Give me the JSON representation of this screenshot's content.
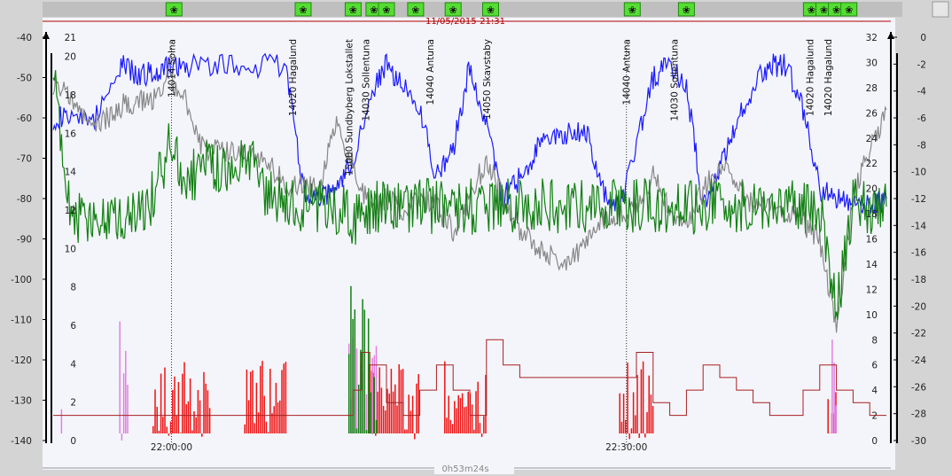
{
  "header": {
    "datetime": "11/05/2015-21:31"
  },
  "footer": {
    "duration": "0h53m24s"
  },
  "chart_data": {
    "type": "line",
    "time_ticks": [
      "22:00:00",
      "22:30:00"
    ],
    "left_axis_1": {
      "ylim": [
        -140,
        -40
      ],
      "ticks": [
        -40,
        -50,
        -60,
        -70,
        -80,
        -90,
        -100,
        -110,
        -120,
        -130,
        -140
      ]
    },
    "left_axis_2": {
      "ylim": [
        0,
        21
      ],
      "ticks": [
        21,
        20,
        18,
        16,
        14,
        12,
        10,
        8,
        6,
        4,
        2,
        0
      ]
    },
    "right_axis_1": {
      "ylim": [
        0,
        32
      ],
      "ticks": [
        32,
        30,
        28,
        26,
        24,
        22,
        20,
        18,
        16,
        14,
        12,
        10,
        8,
        6,
        4,
        2,
        0
      ]
    },
    "right_axis_2": {
      "ylim": [
        -30,
        0
      ],
      "ticks": [
        0,
        -2,
        -4,
        -6,
        -8,
        -10,
        -12,
        -14,
        -16,
        -18,
        -20,
        -22,
        -24,
        -26,
        -28,
        -30
      ]
    },
    "grid": false,
    "cell_labels": [
      {
        "t": 0.142,
        "text": "14014 Solna"
      },
      {
        "t": 0.287,
        "text": "14020 Hagalund"
      },
      {
        "t": 0.355,
        "text": "15000 Sundbyberg Lokstallet"
      },
      {
        "t": 0.375,
        "text": "14030 Sollentuna"
      },
      {
        "t": 0.452,
        "text": "14040 Antuna"
      },
      {
        "t": 0.52,
        "text": "14050 Skavstaby"
      },
      {
        "t": 0.688,
        "text": "14040 Antuna"
      },
      {
        "t": 0.745,
        "text": "14030 Sollentuna"
      },
      {
        "t": 0.908,
        "text": "14020 Hagalund"
      },
      {
        "t": 0.93,
        "text": "14020 Hagalund"
      }
    ],
    "handover_markers": [
      0.142,
      0.688
    ],
    "event_icons": [
      0.145,
      0.3,
      0.36,
      0.385,
      0.4,
      0.435,
      0.48,
      0.525,
      0.695,
      0.76,
      0.91,
      0.925,
      0.94,
      0.955
    ],
    "series": [
      {
        "color": "#1a1aff",
        "axis": "left_axis_1",
        "x": [
          0.0,
          0.02,
          0.05,
          0.08,
          0.1,
          0.12,
          0.14,
          0.16,
          0.2,
          0.24,
          0.28,
          0.3,
          0.32,
          0.34,
          0.36,
          0.38,
          0.4,
          0.42,
          0.44,
          0.46,
          0.48,
          0.5,
          0.52,
          0.54,
          0.56,
          0.58,
          0.6,
          0.62,
          0.64,
          0.66,
          0.68,
          0.7,
          0.72,
          0.74,
          0.76,
          0.78,
          0.8,
          0.82,
          0.84,
          0.86,
          0.88,
          0.9,
          0.92,
          0.94,
          0.96,
          0.98,
          1.0
        ],
        "y": [
          -60,
          -60,
          -60,
          -47,
          -49,
          -49,
          -47,
          -47,
          -47,
          -47,
          -47,
          -78,
          -80,
          -78,
          -70,
          -55,
          -47,
          -52,
          -58,
          -75,
          -68,
          -47,
          -62,
          -80,
          -75,
          -68,
          -64,
          -64,
          -63,
          -78,
          -82,
          -66,
          -50,
          -47,
          -52,
          -82,
          -72,
          -62,
          -52,
          -47,
          -47,
          -58,
          -78,
          -80,
          -82,
          -82,
          -80
        ]
      },
      {
        "color": "#888888",
        "axis": "left_axis_1",
        "x": [
          0.0,
          0.02,
          0.04,
          0.06,
          0.08,
          0.1,
          0.12,
          0.14,
          0.16,
          0.18,
          0.2,
          0.22,
          0.24,
          0.26,
          0.28,
          0.3,
          0.32,
          0.34,
          0.36,
          0.38,
          0.4,
          0.42,
          0.44,
          0.46,
          0.48,
          0.5,
          0.52,
          0.54,
          0.56,
          0.58,
          0.6,
          0.62,
          0.64,
          0.66,
          0.68,
          0.7,
          0.72,
          0.74,
          0.76,
          0.78,
          0.8,
          0.82,
          0.84,
          0.86,
          0.88,
          0.9,
          0.92,
          0.94,
          0.96,
          0.98,
          1.0
        ],
        "y": [
          -52,
          -55,
          -60,
          -61,
          -57,
          -56,
          -55,
          -50,
          -56,
          -68,
          -68,
          -68,
          -70,
          -72,
          -77,
          -77,
          -78,
          -60,
          -72,
          -82,
          -80,
          -83,
          -80,
          -82,
          -88,
          -80,
          -70,
          -80,
          -88,
          -92,
          -95,
          -95,
          -92,
          -85,
          -84,
          -82,
          -74,
          -82,
          -86,
          -78,
          -72,
          -76,
          -82,
          -82,
          -84,
          -86,
          -90,
          -112,
          -80,
          -68,
          -58
        ]
      },
      {
        "color": "#128012",
        "axis": "left_axis_1",
        "x": [
          0.0,
          0.02,
          0.04,
          0.06,
          0.08,
          0.1,
          0.12,
          0.14,
          0.16,
          0.18,
          0.2,
          0.22,
          0.24,
          0.26,
          0.28,
          0.3,
          0.32,
          0.34,
          0.36,
          0.38,
          0.4,
          0.42,
          0.44,
          0.46,
          0.48,
          0.5,
          0.52,
          0.54,
          0.56,
          0.58,
          0.6,
          0.62,
          0.64,
          0.66,
          0.68,
          0.7,
          0.72,
          0.74,
          0.76,
          0.78,
          0.8,
          0.82,
          0.84,
          0.86,
          0.88,
          0.9,
          0.92,
          0.94,
          0.96,
          0.98,
          1.0
        ],
        "y": [
          -50,
          -84,
          -84,
          -84,
          -84,
          -82,
          -80,
          -67,
          -75,
          -72,
          -72,
          -72,
          -72,
          -80,
          -82,
          -82,
          -82,
          -82,
          -85,
          -82,
          -82,
          -82,
          -82,
          -82,
          -82,
          -82,
          -82,
          -82,
          -82,
          -82,
          -82,
          -82,
          -82,
          -82,
          -82,
          -82,
          -82,
          -82,
          -82,
          -82,
          -82,
          -82,
          -82,
          -82,
          -82,
          -82,
          -82,
          -108,
          -82,
          -82,
          -82
        ]
      },
      {
        "color": "#a82020",
        "axis": "right_axis_1",
        "x": [
          0.0,
          0.04,
          0.1,
          0.14,
          0.18,
          0.22,
          0.26,
          0.3,
          0.34,
          0.36,
          0.37,
          0.38,
          0.4,
          0.42,
          0.44,
          0.46,
          0.48,
          0.5,
          0.52,
          0.54,
          0.56,
          0.58,
          0.6,
          0.62,
          0.64,
          0.66,
          0.68,
          0.7,
          0.72,
          0.74,
          0.76,
          0.78,
          0.8,
          0.82,
          0.84,
          0.86,
          0.88,
          0.9,
          0.92,
          0.94,
          0.96,
          0.98,
          1.0
        ],
        "y": [
          2,
          2,
          2,
          2,
          2,
          2,
          2,
          2,
          2,
          4,
          7,
          6,
          3,
          2,
          4,
          6,
          4,
          2,
          8,
          6,
          5,
          5,
          5,
          5,
          5,
          5,
          5,
          7,
          3,
          2,
          4,
          6,
          5,
          4,
          3,
          2,
          2,
          4,
          6,
          4,
          3,
          2,
          2
        ]
      }
    ],
    "signal_bars": [
      {
        "color": "#ee1111",
        "ranges": [
          [
            0.12,
            0.19
          ],
          [
            0.23,
            0.28
          ],
          [
            0.38,
            0.44
          ],
          [
            0.47,
            0.52
          ],
          [
            0.68,
            0.72
          ],
          [
            0.93,
            0.94
          ]
        ],
        "max": -120
      },
      {
        "color": "#e080e0",
        "ranges": [
          [
            0.01,
            0.012
          ],
          [
            0.08,
            0.09
          ],
          [
            0.355,
            0.39
          ],
          [
            0.935,
            0.94
          ]
        ],
        "max": -110
      },
      {
        "color": "#128012",
        "ranges": [
          [
            0.355,
            0.39
          ]
        ],
        "max": -100
      }
    ]
  },
  "colors": {
    "plot_bg": "#f4f5fb",
    "frame_bg": "#d4d4d4",
    "axis_red": "#b00000"
  }
}
